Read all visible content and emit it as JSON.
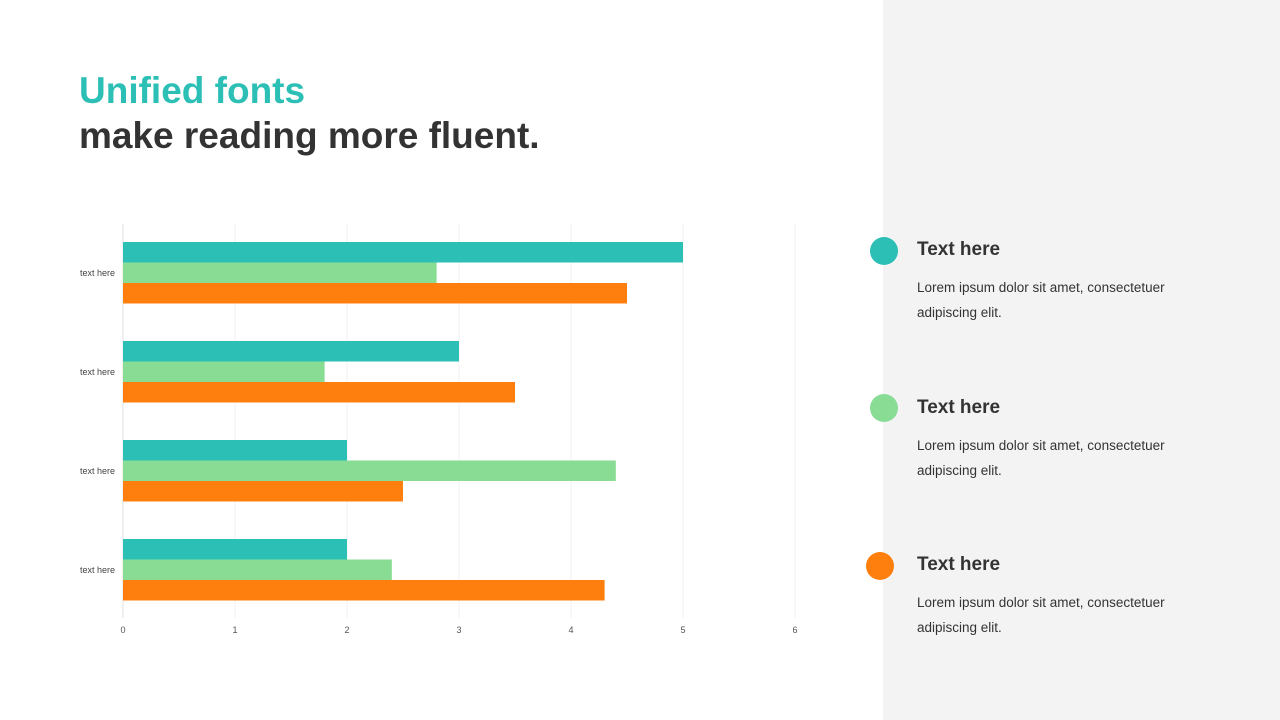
{
  "header": {
    "title_line1": "Unified fonts",
    "title_line2": "make reading more fluent."
  },
  "colors": {
    "teal": "#2bbfb5",
    "green": "#88dc94",
    "orange": "#ff7f0e",
    "text_dark": "#333333",
    "panel_bg": "#f3f3f3"
  },
  "legend": [
    {
      "heading": "Text here",
      "text": "Lorem ipsum dolor sit amet, consectetuer adipiscing elit.",
      "color": "#2bbfb5"
    },
    {
      "heading": "Text here",
      "text": "Lorem ipsum dolor sit amet, consectetuer adipiscing elit.",
      "color": "#88dc94"
    },
    {
      "heading": "Text here",
      "text": "Lorem ipsum dolor sit amet, consectetuer adipiscing elit.",
      "color": "#ff7f0e"
    }
  ],
  "chart_data": {
    "type": "bar",
    "orientation": "horizontal",
    "categories": [
      "text here",
      "text here",
      "text here",
      "text here"
    ],
    "series": [
      {
        "values": [
          5,
          3,
          2,
          2
        ],
        "color": "#2bbfb5"
      },
      {
        "values": [
          2.8,
          1.8,
          4.4,
          2.4
        ],
        "color": "#88dc94"
      },
      {
        "values": [
          4.5,
          3.5,
          2.5,
          4.3
        ],
        "color": "#ff7f0e"
      }
    ],
    "xlim": [
      0,
      6
    ],
    "xticks": [
      "0",
      "1",
      "2",
      "3",
      "4",
      "5",
      "6"
    ],
    "grid": true
  }
}
